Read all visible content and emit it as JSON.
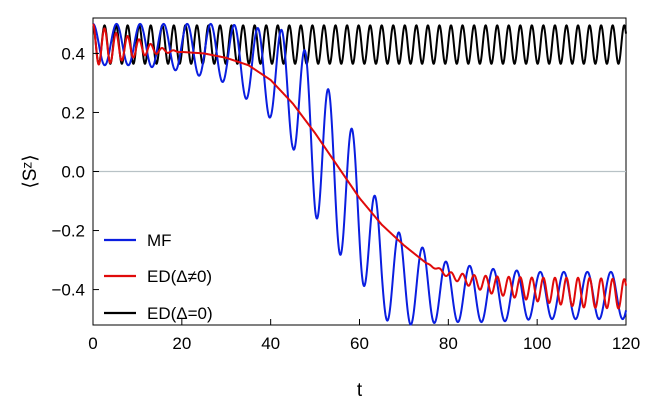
{
  "chart_data": {
    "type": "line",
    "title": "",
    "xlabel": "t",
    "ylabel": "⟨Sᶻ⟩",
    "xlim": [
      0,
      120
    ],
    "ylim": [
      -0.52,
      0.52
    ],
    "xticks": [
      0,
      20,
      40,
      60,
      80,
      100,
      120
    ],
    "yticks": [
      -0.4,
      -0.2,
      0.0,
      0.2,
      0.4
    ],
    "ytick_labels": [
      "−0.4",
      "−0.2",
      "0.0",
      "0.2",
      "0.4"
    ],
    "zero_line": true,
    "grid": false,
    "legend_position": "lower-left",
    "series": [
      {
        "name": "MF",
        "color": "#0a1ee0",
        "x": [
          0,
          10,
          20,
          30,
          40,
          45,
          50,
          55,
          60,
          65,
          70,
          80,
          90,
          100,
          110,
          120
        ],
        "y": [
          0.43,
          0.43,
          0.42,
          0.4,
          0.33,
          0.28,
          0.1,
          -0.02,
          -0.13,
          -0.33,
          -0.37,
          -0.41,
          -0.42,
          -0.42,
          -0.42,
          -0.42
        ],
        "amplitude": [
          0.07,
          0.07,
          0.08,
          0.1,
          0.15,
          0.2,
          0.25,
          0.25,
          0.23,
          0.17,
          0.15,
          0.1,
          0.09,
          0.08,
          0.08,
          0.08
        ],
        "period": 5.3
      },
      {
        "name": "ED(Δ≠0)",
        "color": "#e00a0a",
        "x": [
          0,
          5,
          10,
          15,
          20,
          25,
          30,
          35,
          40,
          45,
          50,
          55,
          60,
          65,
          70,
          75,
          80,
          85,
          90,
          100,
          110,
          120
        ],
        "y": [
          0.43,
          0.42,
          0.42,
          0.41,
          0.405,
          0.4,
          0.385,
          0.36,
          0.31,
          0.23,
          0.13,
          0.02,
          -0.09,
          -0.18,
          -0.25,
          -0.31,
          -0.35,
          -0.37,
          -0.385,
          -0.4,
          -0.41,
          -0.415
        ],
        "amplitude": [
          0.07,
          0.05,
          0.03,
          0.01,
          0.0,
          0.0,
          0.0,
          0.0,
          0.0,
          0.0,
          0.0,
          0.0,
          0.0,
          0.0,
          0.0,
          0.0,
          0.01,
          0.02,
          0.03,
          0.04,
          0.05,
          0.05
        ],
        "period": 2.6
      },
      {
        "name": "ED(Δ=0)",
        "color": "#000000",
        "x": [
          0,
          120
        ],
        "y": [
          0.43,
          0.43
        ],
        "amplitude": [
          0.065,
          0.065
        ],
        "period": 2.6
      }
    ]
  }
}
